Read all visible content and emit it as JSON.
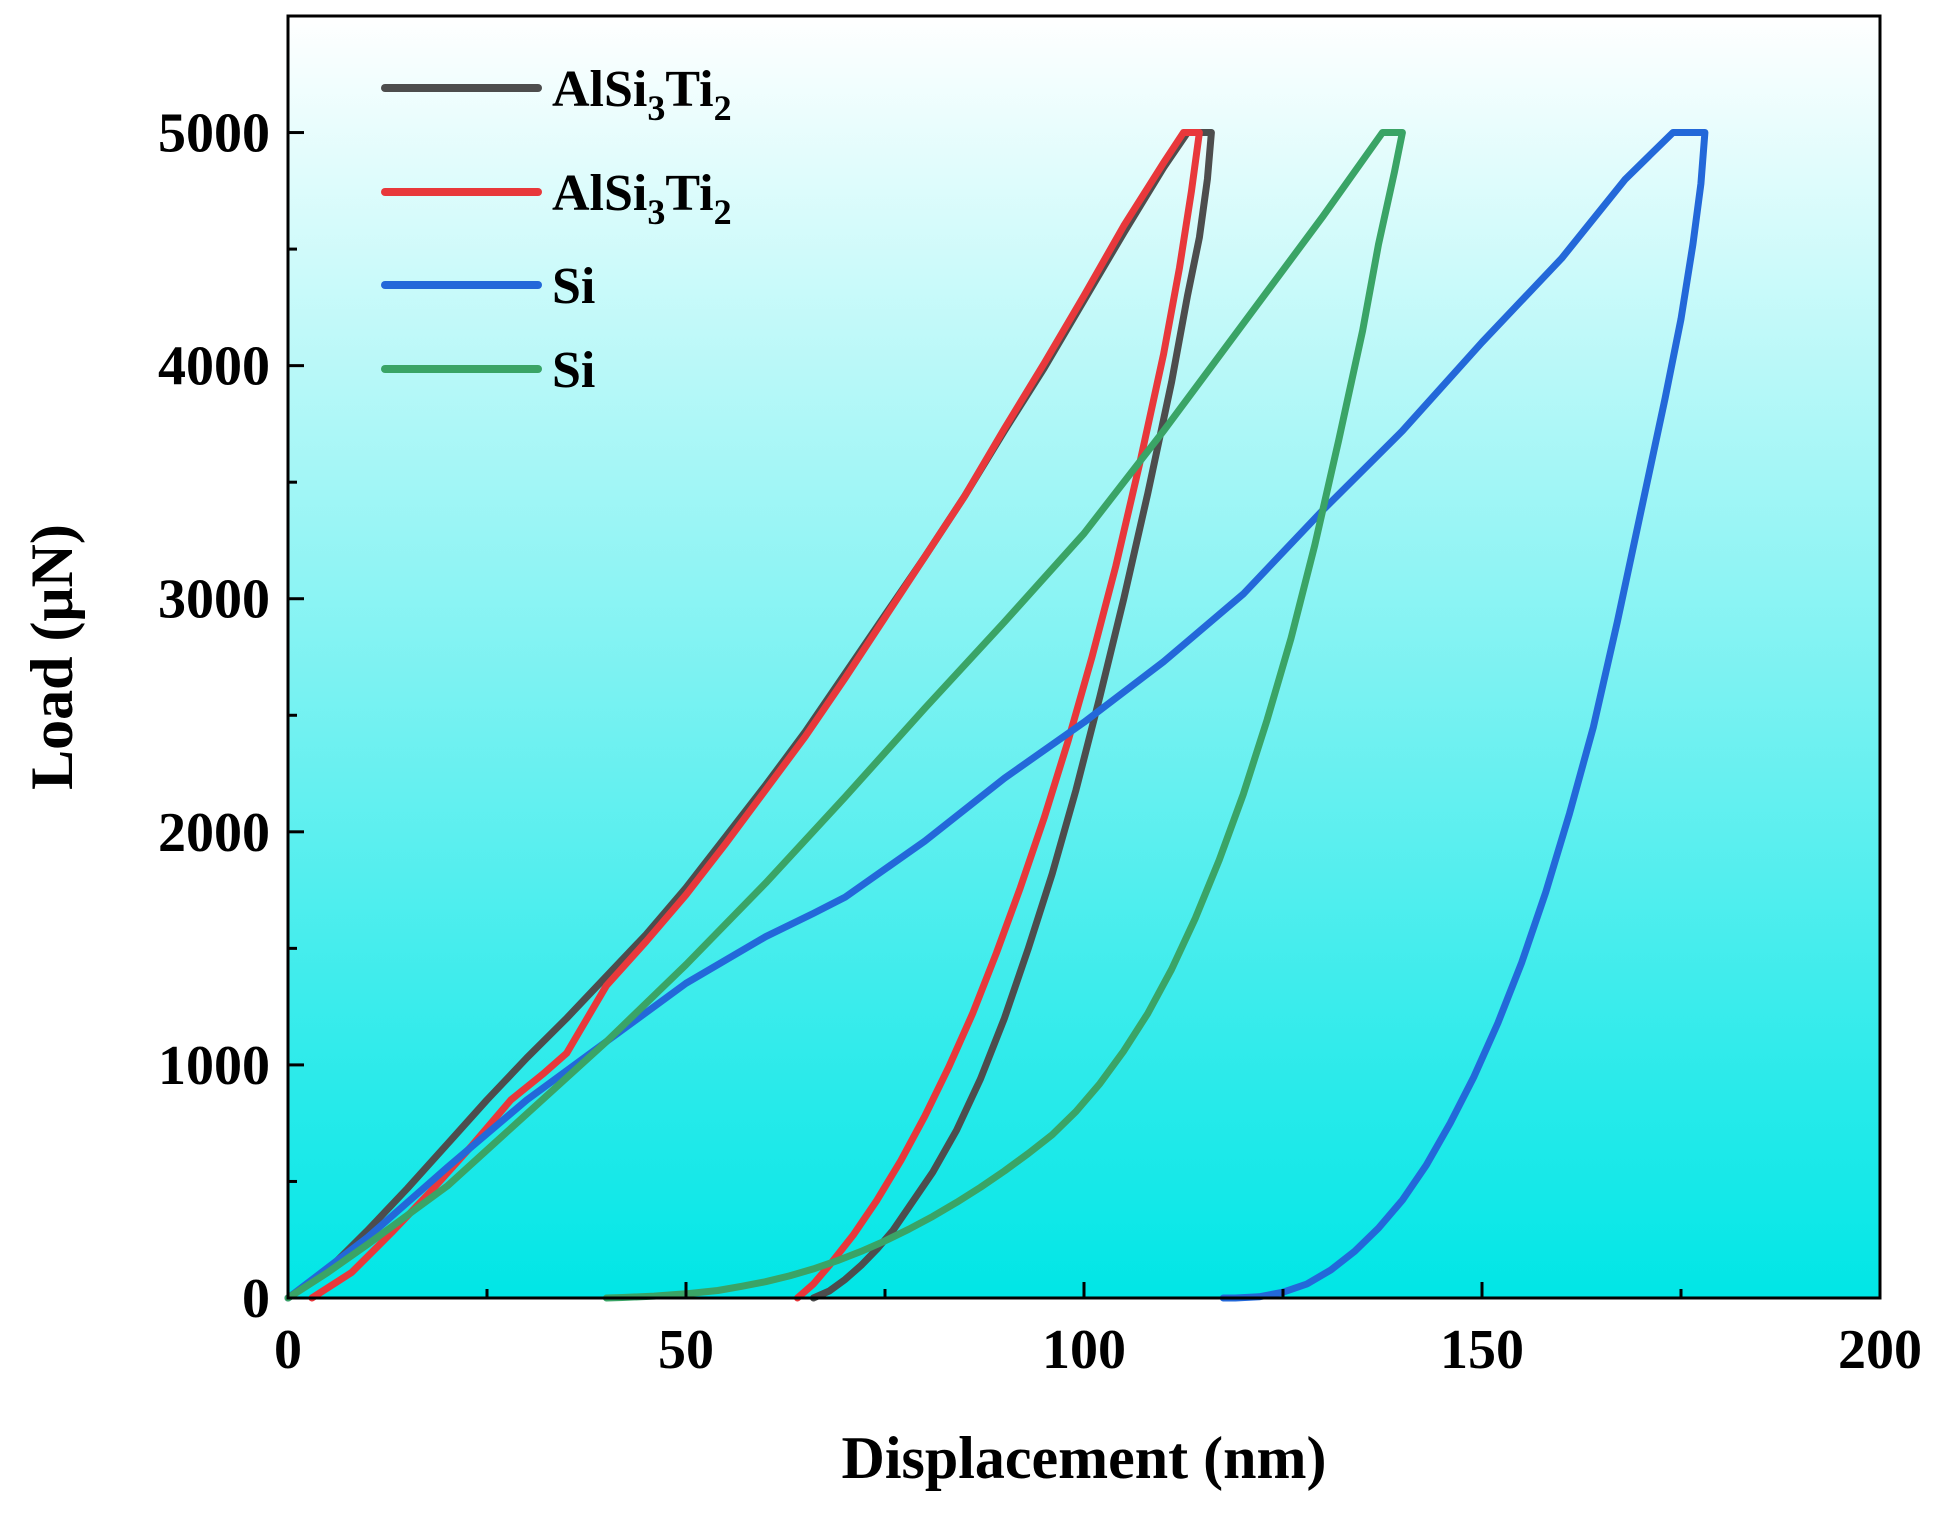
{
  "chart_data": {
    "type": "line",
    "xlabel": "Displacement (nm)",
    "ylabel": "Load (μN)",
    "xlim": [
      0,
      200
    ],
    "ylim": [
      0,
      5500
    ],
    "xticks": [
      0,
      50,
      100,
      150,
      200
    ],
    "yticks": [
      0,
      1000,
      2000,
      3000,
      4000,
      5000
    ],
    "grid": false,
    "legend_position": "top-left",
    "background_gradient": [
      "#ffffff",
      "#00e6e6"
    ],
    "series": [
      {
        "name": "AlSi3Ti2",
        "legend": {
          "base": "AlSi",
          "sub1": "3",
          "mid": "Ti",
          "sub2": "2"
        },
        "color": "#4d4d4d",
        "x": [
          0,
          5,
          10,
          15,
          20,
          25,
          30,
          35,
          40,
          45,
          50,
          55,
          60,
          65,
          70,
          75,
          80,
          85,
          90,
          95,
          100,
          105,
          110,
          113,
          116,
          115.5,
          114.5,
          113,
          111,
          108,
          105,
          102,
          99,
          96,
          93,
          90,
          87,
          84,
          81,
          78,
          76,
          74,
          72,
          70,
          68,
          66
        ],
        "y": [
          0,
          120,
          290,
          470,
          660,
          850,
          1030,
          1200,
          1380,
          1560,
          1760,
          1980,
          2200,
          2430,
          2680,
          2930,
          3180,
          3440,
          3720,
          3990,
          4280,
          4570,
          4850,
          5000,
          5000,
          4800,
          4550,
          4300,
          3930,
          3450,
          3000,
          2580,
          2180,
          1820,
          1500,
          1200,
          940,
          720,
          540,
          390,
          290,
          210,
          140,
          80,
          30,
          0
        ]
      },
      {
        "name": "AlSi3Ti2",
        "legend": {
          "base": "AlSi",
          "sub1": "3",
          "mid": "Ti",
          "sub2": "2"
        },
        "color": "#e8383b",
        "x": [
          3,
          8,
          13,
          18,
          23,
          28,
          32,
          35,
          40,
          45,
          50,
          55,
          60,
          65,
          70,
          75,
          80,
          85,
          90,
          95,
          100,
          105,
          110,
          112.5,
          114.5,
          113.5,
          112,
          110,
          107,
          104,
          101,
          98,
          95,
          92,
          89,
          86,
          83,
          80,
          77,
          74,
          71,
          68,
          66,
          64
        ],
        "y": [
          0,
          110,
          280,
          460,
          650,
          850,
          960,
          1050,
          1340,
          1530,
          1730,
          1950,
          2180,
          2410,
          2660,
          2920,
          3180,
          3440,
          3730,
          4010,
          4300,
          4600,
          4870,
          5000,
          5000,
          4750,
          4420,
          4050,
          3580,
          3140,
          2750,
          2390,
          2060,
          1760,
          1480,
          1220,
          990,
          780,
          590,
          420,
          270,
          140,
          60,
          0
        ]
      },
      {
        "name": "Si",
        "legend": {
          "base": "Si"
        },
        "color": "#2368d9",
        "x": [
          0,
          5,
          10,
          20,
          30,
          40,
          50,
          60,
          66,
          70,
          80,
          90,
          100,
          110,
          120,
          130,
          140,
          150,
          160,
          168,
          174,
          178,
          177.5,
          176.5,
          175,
          173,
          170,
          167,
          164,
          161,
          158,
          155,
          152,
          149,
          146,
          143,
          140,
          137,
          134,
          131,
          128,
          125,
          122,
          119,
          117.5
        ],
        "y": [
          0,
          130,
          260,
          560,
          850,
          1100,
          1350,
          1550,
          1650,
          1720,
          1960,
          2230,
          2470,
          2730,
          3020,
          3380,
          3720,
          4100,
          4460,
          4800,
          5000,
          5000,
          4780,
          4520,
          4200,
          3860,
          3380,
          2900,
          2450,
          2080,
          1740,
          1440,
          1180,
          950,
          750,
          570,
          420,
          300,
          200,
          120,
          60,
          25,
          5,
          0,
          0
        ]
      },
      {
        "name": "Si",
        "legend": {
          "base": "Si"
        },
        "color": "#3aa466",
        "x": [
          0,
          5,
          10,
          20,
          30,
          40,
          50,
          60,
          70,
          80,
          90,
          100,
          110,
          120,
          130,
          135,
          137.5,
          140,
          139,
          137,
          135,
          132,
          129,
          126,
          123,
          120,
          117,
          114,
          111,
          108,
          105,
          102,
          99,
          96,
          93,
          90,
          87,
          84,
          81,
          78,
          75,
          72,
          69,
          66,
          63,
          60,
          57,
          54,
          50,
          46,
          42,
          40
        ],
        "y": [
          0,
          110,
          230,
          480,
          790,
          1100,
          1430,
          1780,
          2150,
          2530,
          2900,
          3280,
          3720,
          4180,
          4640,
          4880,
          5000,
          5000,
          4830,
          4520,
          4150,
          3680,
          3230,
          2830,
          2480,
          2160,
          1880,
          1630,
          1410,
          1220,
          1060,
          920,
          800,
          700,
          620,
          545,
          475,
          410,
          350,
          295,
          245,
          200,
          160,
          125,
          95,
          70,
          50,
          32,
          18,
          8,
          2,
          0
        ]
      }
    ]
  }
}
